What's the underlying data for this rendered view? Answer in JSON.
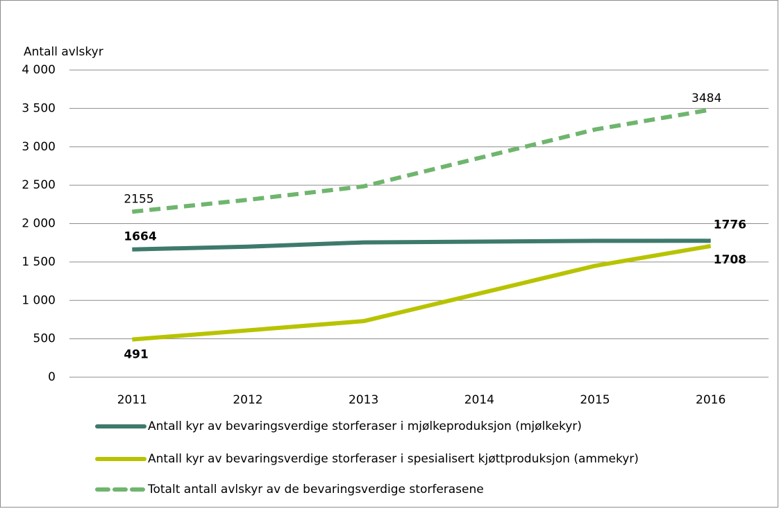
{
  "chart_data": {
    "type": "line",
    "y_label": "Antall avlskyr",
    "categories": [
      "2011",
      "2012",
      "2013",
      "2014",
      "2015",
      "2016"
    ],
    "ylim": [
      0,
      4000
    ],
    "yticks": [
      0,
      500,
      {
        "value": 1000,
        "label": "1 000"
      },
      {
        "value": 1500,
        "label": "1 500"
      },
      {
        "value": 2000,
        "label": "2 000"
      },
      {
        "value": 2500,
        "label": "2 500"
      },
      {
        "value": 3000,
        "label": "3 000"
      },
      {
        "value": 3500,
        "label": "3 500"
      },
      {
        "value": 4000,
        "label": "4 000"
      }
    ],
    "grid": true,
    "legend": "bottom",
    "series": [
      {
        "name": "Antall kyr av bevaringsverdige storferaser i mjølkeproduksjon (mjølkekyr)",
        "color": "#3e7a6c",
        "dashed": false,
        "label_points": [
          0,
          5
        ],
        "label_bold": true,
        "values": [
          1664,
          1700,
          1755,
          1765,
          1775,
          1776
        ]
      },
      {
        "name": "Antall kyr av bevaringsverdige storferaser i spesialisert kjøttproduksjon (ammekyr)",
        "color": "#b8c300",
        "dashed": false,
        "label_points": [
          0,
          5
        ],
        "label_bold": true,
        "values": [
          491,
          610,
          730,
          1090,
          1450,
          1708
        ]
      },
      {
        "name": "Totalt antall avlskyr av de bevaringsverdige storferasene",
        "color": "#6fb56e",
        "dashed": true,
        "label_points": [
          0,
          5
        ],
        "label_bold": false,
        "values": [
          2155,
          2310,
          2485,
          2855,
          3225,
          3484
        ]
      }
    ]
  }
}
